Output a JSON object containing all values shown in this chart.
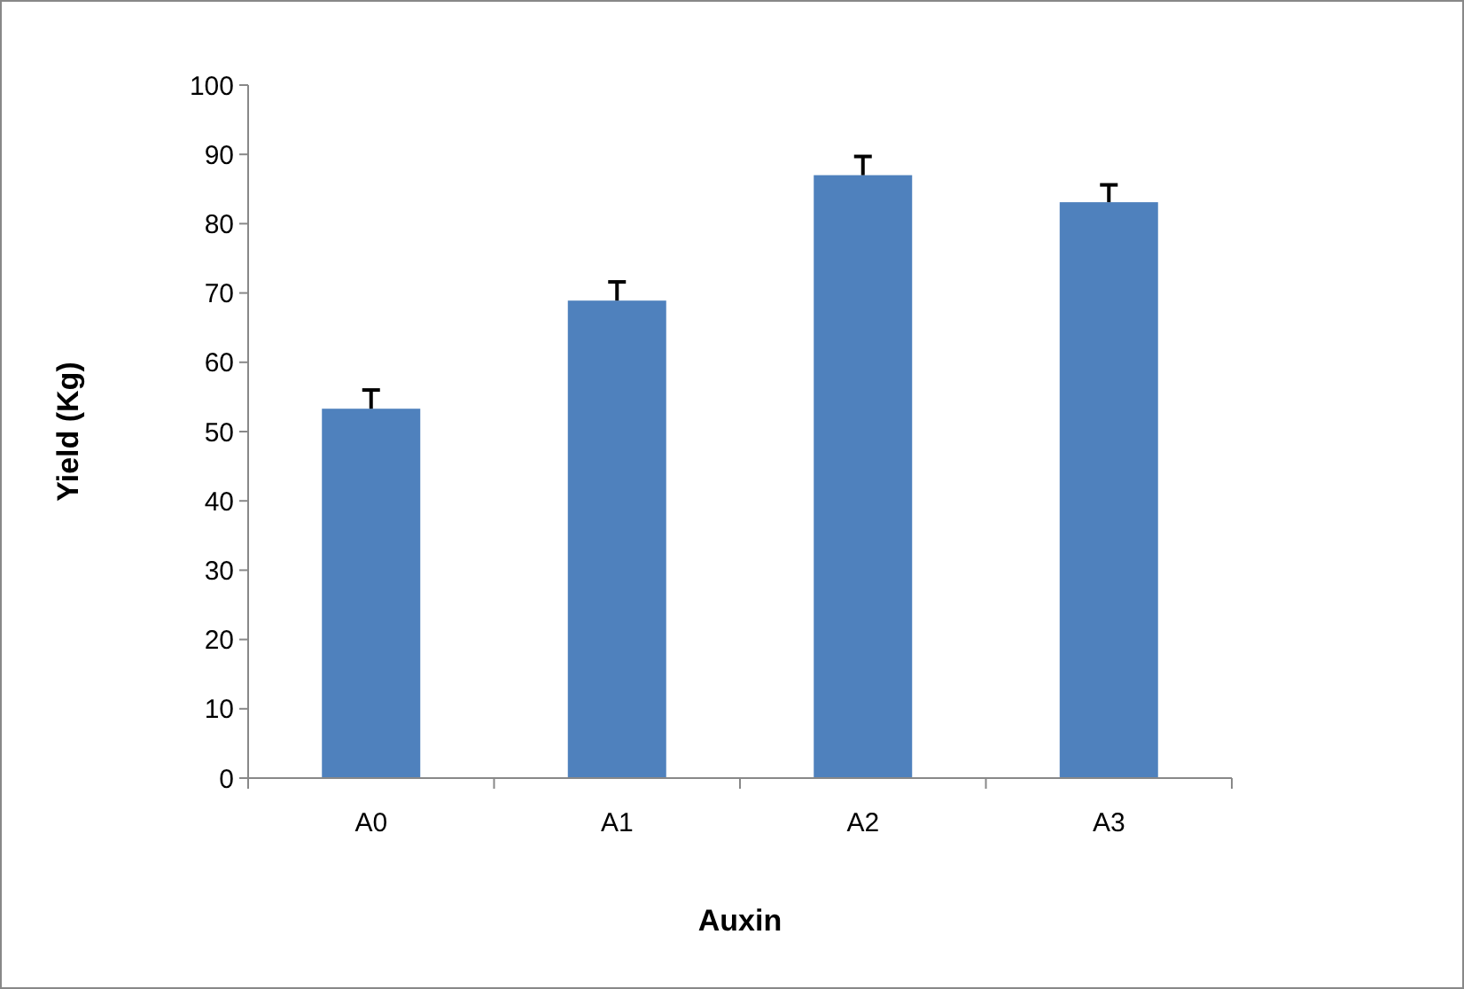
{
  "chart_data": {
    "type": "bar",
    "xlabel": "Auxin",
    "ylabel": "Yield (Kg)",
    "categories": [
      "A0",
      "A1",
      "A2",
      "A3"
    ],
    "values": [
      53.3,
      68.9,
      87.0,
      83.1
    ],
    "errors": [
      [
        53.3,
        56.0
      ],
      [
        68.9,
        71.6
      ],
      [
        87.0,
        89.7
      ],
      [
        83.1,
        85.6
      ]
    ],
    "color": "#4f81bd",
    "ylim": [
      0,
      100
    ],
    "yticks": [
      0,
      10,
      20,
      30,
      40,
      50,
      60,
      70,
      80,
      90,
      100
    ],
    "grid": false
  }
}
